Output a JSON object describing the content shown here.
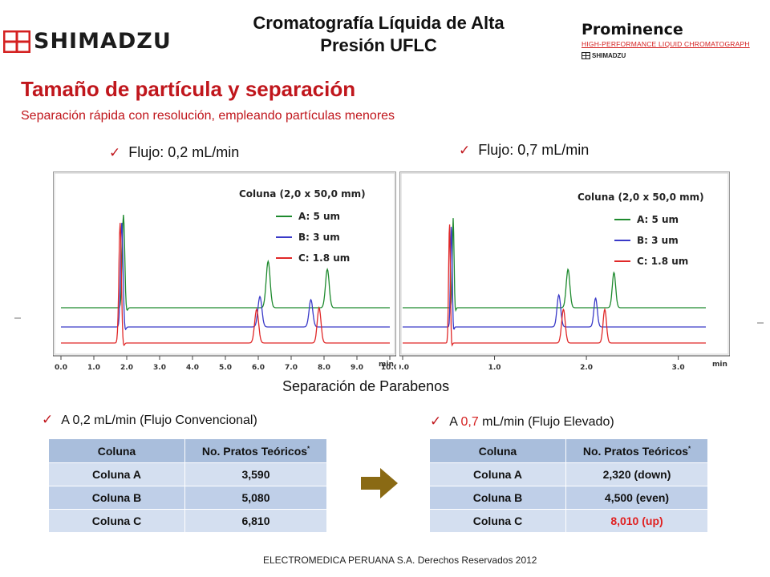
{
  "header": {
    "title_line1": "Cromatografía Líquida de Alta",
    "title_line2": "Presión UFLC",
    "brand_left": "SHIMADZU",
    "brand_right_title": "Prominence",
    "brand_right_subtitle": "HIGH-PERFORMANCE LIQUID CHROMATOGRAPH",
    "brand_right_small": "SHIMADZU"
  },
  "section": {
    "title": "Tamaño de partícula y separación",
    "subtitle": "Separación rápida con resolución, empleando partículas menores"
  },
  "flows": {
    "left": "Flujo: 0,2 mL/min",
    "right": "Flujo: 0,7 mL/min"
  },
  "chart_caption": "Separación de Parabenos",
  "chart_data": [
    {
      "type": "line",
      "title": "",
      "legend_title": "Coluna (2,0 x 50,0 mm)",
      "legend_position": "top-right",
      "x_unit": "min",
      "xlim": [
        0,
        10
      ],
      "xticks": [
        "0.0",
        "1.0",
        "2.0",
        "3.0",
        "4.0",
        "5.0",
        "6.0",
        "7.0",
        "8.0",
        "9.0",
        "10.0"
      ],
      "series": [
        {
          "name": "A: 5 um",
          "color": "#1e8a2e",
          "peaks_min": [
            1.9,
            6.3,
            8.1
          ]
        },
        {
          "name": "B: 3 um",
          "color": "#3a3ac8",
          "peaks_min": [
            1.85,
            6.05,
            7.6
          ]
        },
        {
          "name": "C: 1.8 um",
          "color": "#e02828",
          "peaks_min": [
            1.8,
            5.95,
            7.85
          ]
        }
      ]
    },
    {
      "type": "line",
      "title": "",
      "legend_title": "Coluna (2,0 x 50,0 mm)",
      "legend_position": "top-right",
      "x_unit": "min",
      "xlim": [
        0,
        3.3
      ],
      "xticks": [
        "0.0",
        "1.0",
        "2.0",
        "3.0"
      ],
      "series": [
        {
          "name": "A: 5 um",
          "color": "#1e8a2e",
          "peaks_min": [
            0.55,
            1.8,
            2.3
          ]
        },
        {
          "name": "B: 3 um",
          "color": "#3a3ac8",
          "peaks_min": [
            0.53,
            1.7,
            2.1
          ]
        },
        {
          "name": "C: 1.8 um",
          "color": "#e02828",
          "peaks_min": [
            0.51,
            1.75,
            2.2
          ]
        }
      ]
    }
  ],
  "conditions": {
    "left": "A 0,2 mL/min (Flujo Convencional)",
    "right_prefix": "A ",
    "right_value": "0,7",
    "right_suffix": " mL/min (Flujo Elevado)"
  },
  "tables": {
    "headers": [
      "Coluna",
      "No. Pratos Teóricos"
    ],
    "header_mark": "*",
    "left_rows": [
      [
        "Coluna A",
        "3,590"
      ],
      [
        "Coluna B",
        "5,080"
      ],
      [
        "Coluna C",
        "6,810"
      ]
    ],
    "right_rows": [
      [
        "Coluna A",
        "2,320 (down)"
      ],
      [
        "Coluna B",
        "4,500 (even)"
      ],
      [
        "Coluna C",
        "8,010 (up)"
      ]
    ]
  },
  "footer": "ELECTROMEDICA PERUANA S.A.   Derechos Reservados   2012",
  "colors": {
    "accent_red": "#c0161c",
    "table_header": "#a9bedc",
    "table_row": "#bfcfe8",
    "arrow": "#8a6a14"
  }
}
